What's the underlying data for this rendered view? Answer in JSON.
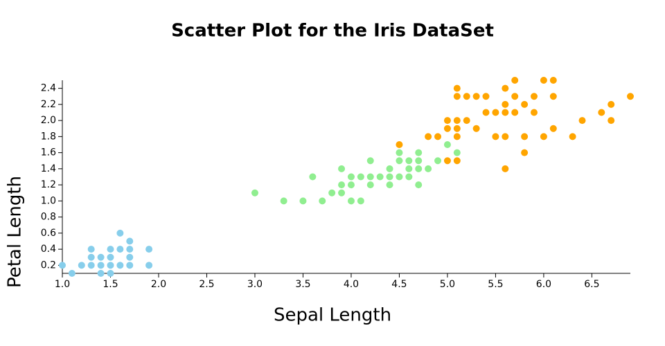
{
  "chart_data": {
    "type": "scatter",
    "title": "Scatter Plot for the Iris DataSet",
    "x_label": "Sepal Length",
    "y_label": "Petal Length",
    "xlim": [
      1.0,
      6.9
    ],
    "ylim": [
      0.1,
      2.5
    ],
    "xticks": [
      {
        "value": 1.0,
        "label": "1.0"
      },
      1.5,
      {
        "value": 2.0,
        "label": "2.0"
      },
      2.5,
      {
        "value": 3.0,
        "label": "3.0"
      },
      3.5,
      {
        "value": 4.0,
        "label": "4.0"
      },
      4.5,
      {
        "value": 5.0,
        "label": "5.0"
      },
      5.5,
      {
        "value": 6.0,
        "label": "6.0"
      },
      6.5
    ],
    "yticks": [
      0.2,
      0.4,
      0.6,
      0.8,
      {
        "value": 1.0,
        "label": "1.0"
      },
      1.2,
      1.4,
      1.6,
      1.8,
      {
        "value": 2.0,
        "label": "2.0"
      },
      2.2,
      2.4
    ],
    "grid": false,
    "series": [
      {
        "color": "#87ceeb",
        "x": [
          1.0,
          1.1,
          1.2,
          1.3,
          1.3,
          1.3,
          1.4,
          1.4,
          1.4,
          1.5,
          1.5,
          1.5,
          1.5,
          1.6,
          1.6,
          1.6,
          1.7,
          1.7,
          1.7,
          1.7,
          1.9,
          1.9
        ],
        "values": [
          0.2,
          0.1,
          0.2,
          0.2,
          0.3,
          0.4,
          0.1,
          0.2,
          0.3,
          0.1,
          0.2,
          0.3,
          0.4,
          0.2,
          0.4,
          0.6,
          0.2,
          0.3,
          0.4,
          0.5,
          0.2,
          0.4
        ]
      },
      {
        "color": "#90ee90",
        "x": [
          3.0,
          3.3,
          3.5,
          3.6,
          3.7,
          3.8,
          3.9,
          3.9,
          3.9,
          4.0,
          4.0,
          4.0,
          4.1,
          4.1,
          4.2,
          4.2,
          4.2,
          4.3,
          4.4,
          4.4,
          4.4,
          4.5,
          4.5,
          4.5,
          4.6,
          4.6,
          4.6,
          4.7,
          4.7,
          4.7,
          4.7,
          4.8,
          4.9,
          5.0,
          5.1
        ],
        "values": [
          1.1,
          1.0,
          1.0,
          1.3,
          1.0,
          1.1,
          1.1,
          1.2,
          1.4,
          1.0,
          1.2,
          1.3,
          1.0,
          1.3,
          1.2,
          1.3,
          1.5,
          1.3,
          1.2,
          1.3,
          1.4,
          1.3,
          1.5,
          1.6,
          1.3,
          1.4,
          1.5,
          1.2,
          1.4,
          1.5,
          1.6,
          1.4,
          1.5,
          1.7,
          1.6
        ]
      },
      {
        "color": "#ffa500",
        "x": [
          4.5,
          4.8,
          4.9,
          5.0,
          5.0,
          5.0,
          5.1,
          5.1,
          5.1,
          5.1,
          5.1,
          5.1,
          5.2,
          5.2,
          5.3,
          5.3,
          5.4,
          5.4,
          5.5,
          5.5,
          5.6,
          5.6,
          5.6,
          5.6,
          5.6,
          5.7,
          5.7,
          5.7,
          5.8,
          5.8,
          5.8,
          5.9,
          5.9,
          6.0,
          6.0,
          6.1,
          6.1,
          6.1,
          6.3,
          6.4,
          6.6,
          6.7,
          6.7,
          6.9
        ],
        "values": [
          1.7,
          1.8,
          1.8,
          1.5,
          1.9,
          2.0,
          1.5,
          1.8,
          1.9,
          2.0,
          2.3,
          2.4,
          2.0,
          2.3,
          1.9,
          2.3,
          2.1,
          2.3,
          1.8,
          2.1,
          1.4,
          1.8,
          2.1,
          2.2,
          2.4,
          2.1,
          2.3,
          2.5,
          1.6,
          1.8,
          2.2,
          2.1,
          2.3,
          1.8,
          2.5,
          1.9,
          2.3,
          2.5,
          1.8,
          2.0,
          2.1,
          2.0,
          2.2,
          2.3
        ]
      }
    ]
  }
}
